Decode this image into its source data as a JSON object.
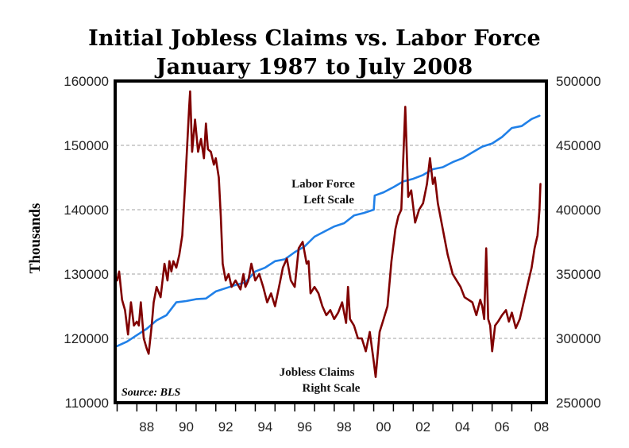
{
  "title_line1": "Initial Jobless Claims vs. Labor Force",
  "title_line2": "January 1987 to July 2008",
  "source": "Source: BLS",
  "chart_data": {
    "type": "line",
    "ylabel_left": "Thousands",
    "ylim_left": [
      110000,
      160000
    ],
    "ylim_right": [
      250000,
      500000
    ],
    "left_ticks": [
      "110000",
      "120000",
      "130000",
      "140000",
      "150000",
      "160000"
    ],
    "right_ticks": [
      "250000",
      "300000",
      "350000",
      "400000",
      "450000",
      "500000"
    ],
    "x_tick_labels": [
      "88",
      "90",
      "92",
      "94",
      "96",
      "98",
      "00",
      "02",
      "04",
      "06",
      "08"
    ],
    "xlim": [
      1986.9,
      2008.75
    ],
    "grid": "horizontal dashed",
    "annotations": {
      "labor_line1": "Labor Force",
      "labor_line2": "Left Scale",
      "claims_line1": "Jobless Claims",
      "claims_line2": "Right Scale"
    },
    "series": [
      {
        "name": "Labor Force",
        "axis": "left",
        "color": "#2080e8",
        "x": [
          1987.0,
          1987.5,
          1988.0,
          1988.5,
          1989.0,
          1989.5,
          1990.0,
          1990.5,
          1991.0,
          1991.5,
          1992.0,
          1992.5,
          1993.0,
          1993.5,
          1994.0,
          1994.5,
          1995.0,
          1995.5,
          1996.0,
          1996.5,
          1997.0,
          1997.5,
          1998.0,
          1998.5,
          1999.0,
          1999.5,
          2000.0,
          2000.05,
          2000.5,
          2001.0,
          2001.5,
          2002.0,
          2002.5,
          2003.0,
          2003.5,
          2004.0,
          2004.5,
          2005.0,
          2005.5,
          2006.0,
          2006.5,
          2007.0,
          2007.5,
          2008.0,
          2008.4
        ],
        "values": [
          118800,
          119500,
          120500,
          121500,
          122800,
          123600,
          125600,
          125800,
          126100,
          126200,
          127300,
          127800,
          128300,
          128700,
          130400,
          131000,
          132000,
          132300,
          133400,
          134300,
          135800,
          136600,
          137400,
          137900,
          139100,
          139500,
          140000,
          142200,
          142700,
          143500,
          144400,
          144800,
          145400,
          146300,
          146600,
          147400,
          148000,
          148900,
          149800,
          150300,
          151300,
          152700,
          153000,
          154100,
          154600
        ]
      },
      {
        "name": "Jobless Claims",
        "axis": "right",
        "color": "#800000",
        "x": [
          1987.0,
          1987.1,
          1987.25,
          1987.4,
          1987.55,
          1987.7,
          1987.85,
          1988.0,
          1988.1,
          1988.2,
          1988.35,
          1988.5,
          1988.6,
          1988.75,
          1988.85,
          1989.0,
          1989.2,
          1989.4,
          1989.55,
          1989.65,
          1989.75,
          1989.85,
          1990.0,
          1990.15,
          1990.3,
          1990.45,
          1990.55,
          1990.65,
          1990.7,
          1990.8,
          1990.95,
          1991.1,
          1991.25,
          1991.4,
          1991.5,
          1991.6,
          1991.75,
          1991.9,
          1992.0,
          1992.15,
          1992.25,
          1992.35,
          1992.5,
          1992.65,
          1992.8,
          1993.0,
          1993.25,
          1993.4,
          1993.5,
          1993.65,
          1993.8,
          1994.0,
          1994.2,
          1994.4,
          1994.6,
          1994.8,
          1995.0,
          1995.2,
          1995.4,
          1995.6,
          1995.8,
          1996.0,
          1996.2,
          1996.4,
          1996.6,
          1996.7,
          1996.8,
          1997.0,
          1997.2,
          1997.4,
          1997.6,
          1997.8,
          1998.0,
          1998.2,
          1998.4,
          1998.6,
          1998.7,
          1998.8,
          1999.0,
          1999.2,
          1999.4,
          1999.6,
          1999.8,
          2000.0,
          2000.1,
          2000.3,
          2000.5,
          2000.7,
          2000.9,
          2001.1,
          2001.25,
          2001.4,
          2001.5,
          2001.6,
          2001.75,
          2001.9,
          2002.1,
          2002.3,
          2002.5,
          2002.7,
          2002.85,
          2003.0,
          2003.1,
          2003.25,
          2003.5,
          2003.75,
          2004.0,
          2004.2,
          2004.4,
          2004.6,
          2004.8,
          2005.0,
          2005.2,
          2005.4,
          2005.5,
          2005.6,
          2005.7,
          2005.8,
          2005.9,
          2006.0,
          2006.15,
          2006.3,
          2006.5,
          2006.7,
          2006.85,
          2007.0,
          2007.2,
          2007.4,
          2007.55,
          2007.7,
          2007.85,
          2008.0,
          2008.15,
          2008.3,
          2008.4,
          2008.45
        ],
        "values": [
          345000,
          352000,
          330000,
          322000,
          303000,
          328000,
          310000,
          313000,
          310000,
          328000,
          300000,
          292000,
          288000,
          310000,
          328000,
          340000,
          332000,
          358000,
          345000,
          360000,
          352000,
          360000,
          355000,
          365000,
          380000,
          420000,
          450000,
          480000,
          492000,
          445000,
          470000,
          445000,
          455000,
          440000,
          467000,
          447000,
          445000,
          435000,
          440000,
          425000,
          395000,
          358000,
          345000,
          350000,
          340000,
          345000,
          338000,
          350000,
          340000,
          345000,
          358000,
          345000,
          350000,
          340000,
          328000,
          335000,
          325000,
          340000,
          355000,
          362000,
          345000,
          340000,
          370000,
          375000,
          358000,
          360000,
          335000,
          340000,
          335000,
          325000,
          318000,
          322000,
          315000,
          320000,
          328000,
          312000,
          340000,
          315000,
          310000,
          300000,
          300000,
          290000,
          305000,
          282000,
          270000,
          305000,
          315000,
          325000,
          360000,
          385000,
          395000,
          400000,
          440000,
          480000,
          410000,
          415000,
          390000,
          400000,
          405000,
          420000,
          440000,
          420000,
          425000,
          405000,
          385000,
          365000,
          350000,
          345000,
          340000,
          332000,
          330000,
          328000,
          318000,
          330000,
          325000,
          315000,
          370000,
          315000,
          310000,
          290000,
          310000,
          313000,
          318000,
          322000,
          313000,
          320000,
          308000,
          315000,
          325000,
          335000,
          345000,
          355000,
          370000,
          380000,
          400000,
          420000
        ]
      }
    ]
  }
}
